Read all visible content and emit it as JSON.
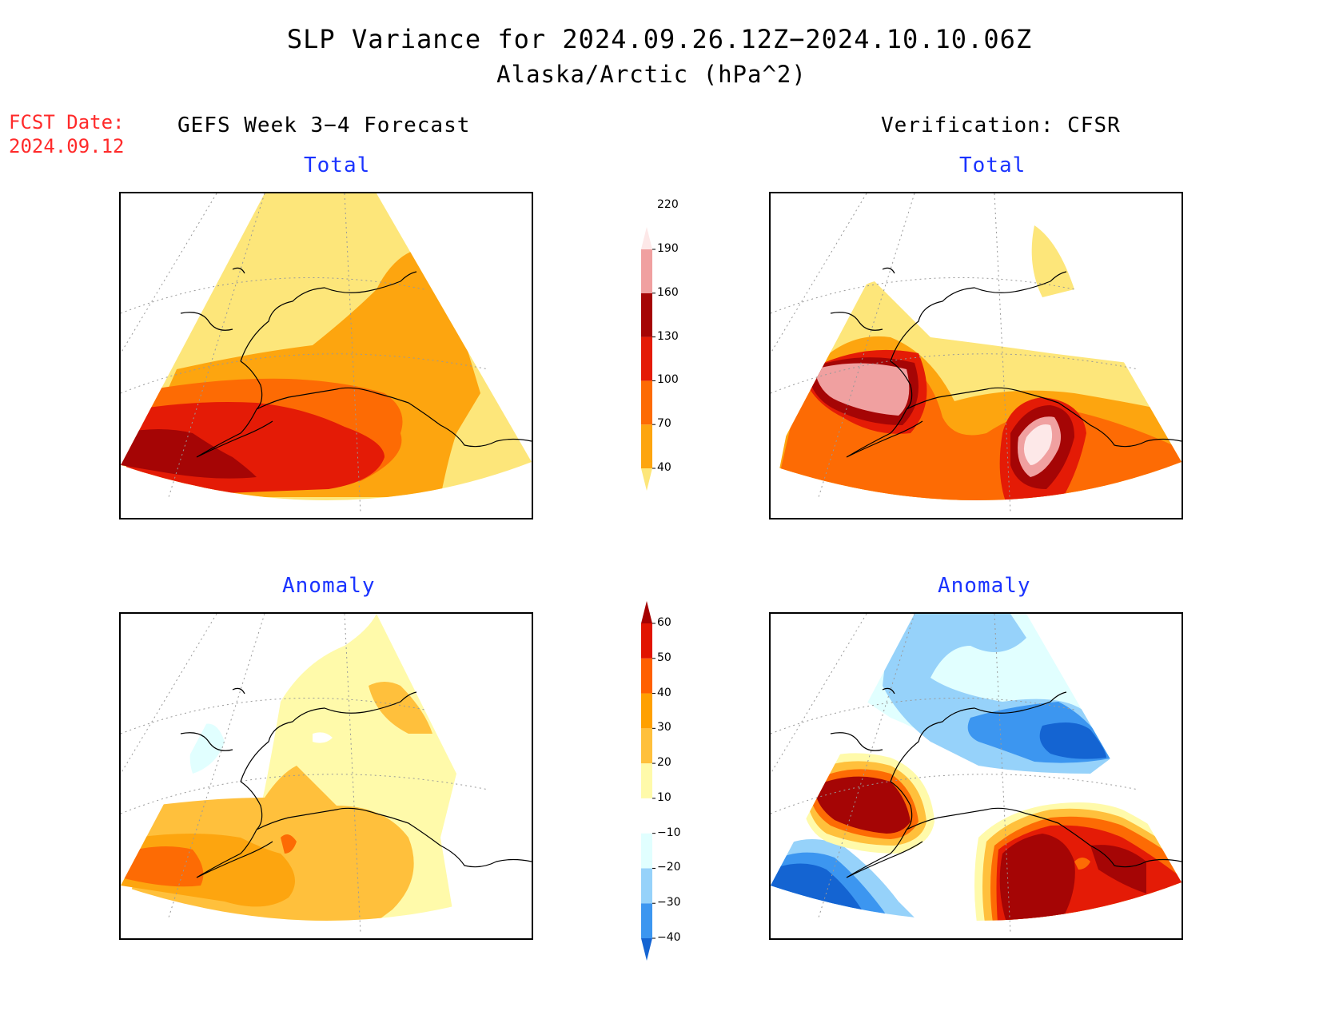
{
  "title": "SLP Variance for 2024.09.26.12Z−2024.10.10.06Z",
  "subtitle": "Alaska/Arctic (hPa^2)",
  "fcst_date": {
    "label": "FCST Date:",
    "value": "2024.09.12"
  },
  "columns": {
    "left": "GEFS Week 3−4 Forecast",
    "right": "Verification: CFSR"
  },
  "panels": {
    "forecast_total": {
      "title": "Total"
    },
    "verification_total": {
      "title": "Total"
    },
    "forecast_anomaly": {
      "title": "Anomaly"
    },
    "verification_anomaly": {
      "title": "Anomaly"
    }
  },
  "colorbars": {
    "total": {
      "levels": [
        "40",
        "70",
        "100",
        "130",
        "160",
        "190",
        "220"
      ],
      "colors": [
        "#fde67a",
        "#fda50f",
        "#fd6b04",
        "#e41b06",
        "#a50505",
        "#f0a0a0",
        "#fde8e8"
      ]
    },
    "anomaly": {
      "levels": [
        "−40",
        "−30",
        "−20",
        "−10",
        "10",
        "20",
        "30",
        "40",
        "50",
        "60"
      ],
      "colors": [
        "#1464d2",
        "#3c96f0",
        "#96d2fa",
        "#e1ffff",
        "#ffffff",
        "#fffaaa",
        "#ffc03c",
        "#ffa000",
        "#ff6000",
        "#e11400",
        "#a50000"
      ]
    }
  }
}
